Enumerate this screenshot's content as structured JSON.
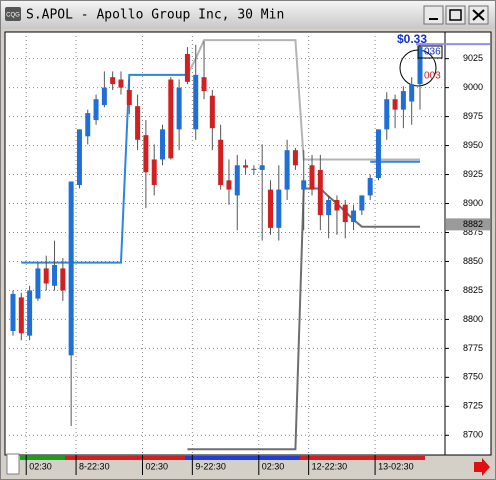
{
  "chart_data": {
    "type": "candlestick",
    "title": "S.APOL - Apollo Group Inc, 30 Min",
    "price_change": "$0.33",
    "bid_size": "036",
    "ask_size": "003",
    "last_marker": 8882,
    "categories": [
      null,
      null,
      null,
      null,
      "02:30",
      null,
      null,
      null,
      null,
      null,
      "8-22:30",
      null,
      null,
      null,
      null,
      null,
      null,
      null,
      "02:30",
      null,
      null,
      null,
      null,
      null,
      "9-22:30",
      null,
      null,
      null,
      null,
      null,
      null,
      null,
      "02:30",
      null,
      null,
      null,
      null,
      null,
      "12-22:30",
      null,
      null,
      null,
      null,
      null,
      null,
      null,
      "13-02:30",
      null,
      null,
      null
    ],
    "open": [
      8790,
      8819,
      8786,
      8818,
      8844,
      8829,
      8844,
      8769,
      8916,
      8958,
      8972,
      8985,
      9009,
      9007,
      8998,
      8984,
      8959,
      8938,
      8938,
      9007,
      8964,
      9029,
      8964,
      9009,
      8993,
      8955,
      8920,
      8907,
      8933,
      8929,
      8929,
      8912,
      8879,
      8912,
      8946,
      8912,
      8933,
      8929,
      8890,
      8903,
      8899,
      8884,
      8894,
      8907,
      8922,
      8964,
      8990,
      8981,
      8988,
      9003
    ],
    "high": [
      8825,
      8823,
      8829,
      8849,
      8855,
      8868,
      8853,
      8918,
      8964,
      8981,
      8994,
      9014,
      9014,
      9014,
      9007,
      8994,
      8972,
      8951,
      8968,
      9009,
      9007,
      9035,
      9037,
      9040,
      8998,
      8968,
      8938,
      8942,
      8938,
      8933,
      8951,
      8920,
      8933,
      8955,
      8948,
      8946,
      8942,
      8942,
      8907,
      8907,
      8903,
      8899,
      8907,
      8925,
      8964,
      8996,
      8994,
      9001,
      9009,
      9037
    ],
    "low": [
      8786,
      8782,
      8782,
      8816,
      8825,
      8825,
      8816,
      8708,
      8913,
      8951,
      8968,
      8983,
      8998,
      8994,
      8977,
      8946,
      8896,
      8907,
      8933,
      8938,
      8946,
      9003,
      8955,
      8990,
      8946,
      8912,
      8899,
      8877,
      8925,
      8925,
      8868,
      8873,
      8868,
      8903,
      8929,
      8877,
      8907,
      8877,
      8870,
      8873,
      8870,
      8877,
      8890,
      8903,
      8920,
      8955,
      8965,
      8965,
      8968,
      8981
    ],
    "close": [
      8822,
      8788,
      8825,
      8844,
      8831,
      8847,
      8825,
      8919,
      8964,
      8978,
      8990,
      9000,
      9003,
      9000,
      8985,
      8955,
      8927,
      8916,
      8964,
      8939,
      9000,
      9005,
      9011,
      8997,
      8965,
      8916,
      8912,
      8933,
      8931,
      8930,
      8933,
      8879,
      8912,
      8946,
      8933,
      8920,
      8912,
      8890,
      8903,
      8894,
      8884,
      8894,
      8907,
      8922,
      8964,
      8990,
      8981,
      8997,
      9003,
      9035
    ],
    "up_color": "#1f6fd8",
    "down_color": "#d21f1f",
    "lines": [
      {
        "color": "#2a86e0",
        "values": [
          null,
          8849,
          8849,
          8849,
          8849,
          8849,
          8849,
          8849,
          8849,
          8849,
          8849,
          8849,
          8849,
          8849,
          9011,
          9011,
          9011,
          9011,
          9011,
          9011,
          9011,
          9011,
          null,
          null,
          null,
          null,
          null,
          null,
          null,
          null,
          null,
          null,
          null,
          null,
          null,
          null,
          null,
          null,
          null,
          null,
          null,
          null,
          null,
          8936,
          8936,
          8936,
          8936,
          8936,
          8936,
          8936
        ]
      },
      {
        "color": "#b4b4b4",
        "values": [
          null,
          null,
          null,
          null,
          null,
          null,
          null,
          null,
          null,
          null,
          null,
          null,
          null,
          null,
          null,
          null,
          null,
          null,
          null,
          null,
          null,
          9011,
          9025,
          9041,
          9041,
          9041,
          9041,
          9041,
          9041,
          9041,
          9041,
          9041,
          9041,
          9041,
          9041,
          8938,
          8938,
          8938,
          8938,
          8938,
          8938,
          8938,
          8938,
          8938,
          8938,
          8938,
          8938,
          8938,
          8938,
          8938
        ]
      },
      {
        "color": "#6e6e6e",
        "values": [
          null,
          null,
          null,
          null,
          null,
          null,
          null,
          null,
          null,
          null,
          null,
          null,
          null,
          null,
          null,
          null,
          null,
          null,
          null,
          null,
          null,
          8688,
          8688,
          8688,
          8688,
          8688,
          8688,
          8688,
          8688,
          8688,
          8688,
          8688,
          8688,
          8688,
          8688,
          8913,
          8913,
          8913,
          8906,
          8900,
          8893,
          8886,
          8880,
          8880,
          8880,
          8880,
          8880,
          8880,
          8880,
          8880
        ]
      }
    ],
    "ylim": [
      8683,
      9048
    ],
    "yticks": [
      8700,
      8725,
      8750,
      8775,
      8800,
      8825,
      8850,
      8875,
      8900,
      8925,
      8950,
      8975,
      9000,
      9025
    ],
    "grid": true
  }
}
